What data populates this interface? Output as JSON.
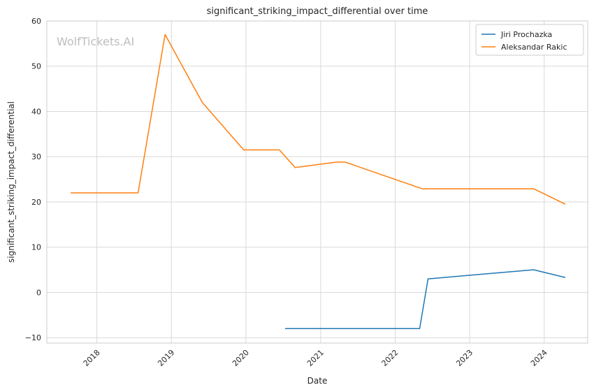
{
  "chart_data": {
    "type": "line",
    "title": "significant_striking_impact_differential over time",
    "xlabel": "Date",
    "ylabel": "significant_striking_impact_differential",
    "watermark": "WolfTickets.AI",
    "xlim": [
      "2017-05-01",
      "2024-08-01"
    ],
    "ylim": [
      -11.2,
      60
    ],
    "x_ticks": [
      "2018",
      "2019",
      "2020",
      "2021",
      "2022",
      "2023",
      "2024"
    ],
    "y_ticks": [
      -10,
      0,
      10,
      20,
      30,
      40,
      50,
      60
    ],
    "grid": true,
    "legend_position": "top-right",
    "series": [
      {
        "name": "Jiri Prochazka",
        "color": "#1f77b4",
        "points": [
          [
            "2020-07-11",
            -8
          ],
          [
            "2022-05-01",
            -8
          ],
          [
            "2022-06-11",
            3
          ],
          [
            "2023-11-11",
            5
          ],
          [
            "2024-04-13",
            3.3
          ]
        ]
      },
      {
        "name": "Aleksandar Rakic",
        "color": "#ff7f0e",
        "points": [
          [
            "2017-08-26",
            22
          ],
          [
            "2018-07-22",
            22
          ],
          [
            "2018-12-01",
            57
          ],
          [
            "2019-06-01",
            42
          ],
          [
            "2019-12-21",
            31.5
          ],
          [
            "2020-06-13",
            31.5
          ],
          [
            "2020-08-29",
            27.6
          ],
          [
            "2021-03-20",
            28.8
          ],
          [
            "2021-05-01",
            28.8
          ],
          [
            "2022-05-14",
            22.9
          ],
          [
            "2023-11-11",
            22.9
          ],
          [
            "2024-04-13",
            19.5
          ]
        ]
      }
    ]
  }
}
